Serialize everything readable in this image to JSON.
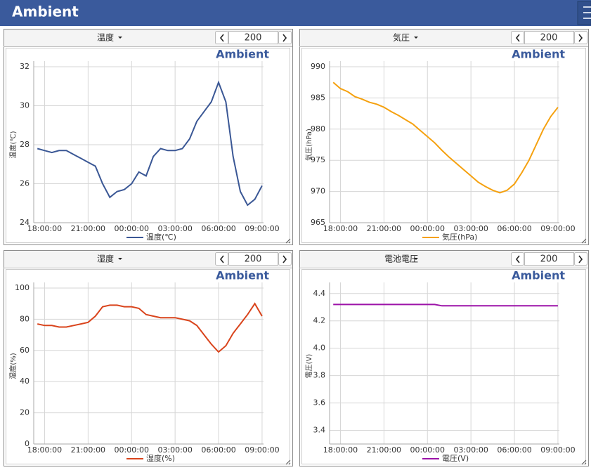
{
  "header": {
    "title": "Ambient"
  },
  "chart_data": [
    {
      "type": "line",
      "panel_title": "温度",
      "page_size": 200,
      "brand": "Ambient",
      "ylabel": "温度(℃)",
      "grid": true,
      "x": [
        17.5,
        18,
        18.5,
        19,
        19.5,
        20,
        20.5,
        21,
        21.5,
        22,
        22.5,
        23,
        23.5,
        24,
        24.5,
        25,
        25.5,
        26,
        26.5,
        27,
        27.5,
        28,
        28.5,
        29,
        29.5,
        30,
        30.5,
        31,
        31.5,
        32,
        32.5,
        33
      ],
      "xlim": [
        17.25,
        33.1
      ],
      "xticks": [
        {
          "value": 18,
          "label": "18:00:00"
        },
        {
          "value": 21,
          "label": "21:00:00"
        },
        {
          "value": 24,
          "label": "00:00:00"
        },
        {
          "value": 27,
          "label": "03:00:00"
        },
        {
          "value": 30,
          "label": "06:00:00"
        },
        {
          "value": 33,
          "label": "09:00:00"
        }
      ],
      "ylim": [
        24,
        32
      ],
      "yticks": [
        24,
        26,
        28,
        30,
        32
      ],
      "series": [
        {
          "name": "温度(℃)",
          "color": "#3a5795",
          "values": [
            27.8,
            27.7,
            27.6,
            27.7,
            27.7,
            27.5,
            27.3,
            27.1,
            26.9,
            26.0,
            25.3,
            25.6,
            25.7,
            26.0,
            26.6,
            26.4,
            27.4,
            27.8,
            27.7,
            27.7,
            27.8,
            28.3,
            29.2,
            29.7,
            30.2,
            31.2,
            30.2,
            27.4,
            25.6,
            24.9,
            25.2,
            25.9
          ]
        }
      ]
    },
    {
      "type": "line",
      "panel_title": "気圧",
      "page_size": 200,
      "brand": "Ambient",
      "ylabel": "気圧(hPa)",
      "grid": true,
      "x": [
        17.5,
        18,
        18.5,
        19,
        19.5,
        20,
        20.5,
        21,
        21.5,
        22,
        22.5,
        23,
        23.5,
        24,
        24.5,
        25,
        25.5,
        26,
        26.5,
        27,
        27.5,
        28,
        28.5,
        29,
        29.5,
        30,
        30.5,
        31,
        31.5,
        32,
        32.5,
        33
      ],
      "xlim": [
        17.25,
        33.1
      ],
      "xticks": [
        {
          "value": 18,
          "label": "18:00:00"
        },
        {
          "value": 21,
          "label": "21:00:00"
        },
        {
          "value": 24,
          "label": "00:00:00"
        },
        {
          "value": 27,
          "label": "03:00:00"
        },
        {
          "value": 30,
          "label": "06:00:00"
        },
        {
          "value": 33,
          "label": "09:00:00"
        }
      ],
      "ylim": [
        965,
        990
      ],
      "yticks": [
        965,
        970,
        975,
        980,
        985,
        990
      ],
      "series": [
        {
          "name": "気圧(hPa)",
          "color": "#f5a10f",
          "values": [
            987.5,
            986.5,
            986,
            985.2,
            984.8,
            984.3,
            984,
            983.5,
            982.8,
            982.2,
            981.5,
            980.8,
            979.8,
            978.8,
            977.8,
            976.6,
            975.5,
            974.5,
            973.5,
            972.5,
            971.5,
            970.8,
            970.2,
            969.8,
            970.2,
            971.2,
            973,
            975,
            977.5,
            980,
            982,
            983.5
          ]
        }
      ]
    },
    {
      "type": "line",
      "panel_title": "湿度",
      "page_size": 200,
      "brand": "Ambient",
      "ylabel": "湿度(%)",
      "grid": true,
      "x": [
        17.5,
        18,
        18.5,
        19,
        19.5,
        20,
        20.5,
        21,
        21.5,
        22,
        22.5,
        23,
        23.5,
        24,
        24.5,
        25,
        25.5,
        26,
        26.5,
        27,
        27.5,
        28,
        28.5,
        29,
        29.5,
        30,
        30.5,
        31,
        31.5,
        32,
        32.5,
        33
      ],
      "xlim": [
        17.25,
        33.1
      ],
      "xticks": [
        {
          "value": 18,
          "label": "18:00:00"
        },
        {
          "value": 21,
          "label": "21:00:00"
        },
        {
          "value": 24,
          "label": "00:00:00"
        },
        {
          "value": 27,
          "label": "03:00:00"
        },
        {
          "value": 30,
          "label": "06:00:00"
        },
        {
          "value": 33,
          "label": "09:00:00"
        }
      ],
      "ylim": [
        0,
        100
      ],
      "yticks": [
        0,
        20,
        40,
        60,
        80,
        100
      ],
      "series": [
        {
          "name": "湿度(%)",
          "color": "#d9441c",
          "values": [
            77,
            76,
            76,
            75,
            75,
            76,
            77,
            78,
            82,
            88,
            89,
            89,
            88,
            88,
            87,
            83,
            82,
            81,
            81,
            81,
            80,
            79,
            76,
            70,
            64,
            59,
            63,
            71,
            77,
            83,
            90,
            82
          ]
        }
      ]
    },
    {
      "type": "line",
      "panel_title": "電池電圧",
      "page_size": 200,
      "brand": "Ambient",
      "ylabel": "電圧(V)",
      "grid": true,
      "x": [
        17.5,
        18,
        18.5,
        19,
        19.5,
        20,
        20.5,
        21,
        21.5,
        22,
        22.5,
        23,
        23.5,
        24,
        24.5,
        25,
        25.5,
        26,
        26.5,
        27,
        27.5,
        28,
        28.5,
        29,
        29.5,
        30,
        30.5,
        31,
        31.5,
        32,
        32.5,
        33
      ],
      "xlim": [
        17.25,
        33.1
      ],
      "xticks": [
        {
          "value": 18,
          "label": "18:00:00"
        },
        {
          "value": 21,
          "label": "21:00:00"
        },
        {
          "value": 24,
          "label": "00:00:00"
        },
        {
          "value": 27,
          "label": "03:00:00"
        },
        {
          "value": 30,
          "label": "06:00:00"
        },
        {
          "value": 33,
          "label": "09:00:00"
        }
      ],
      "ylim": [
        3.3,
        4.44
      ],
      "yticks": [
        3.4,
        3.6,
        3.8,
        {
          "value": 4,
          "label": "4.0"
        },
        4.2,
        4.4
      ],
      "series": [
        {
          "name": "電圧(V)",
          "color": "#9c12a8",
          "values": [
            4.32,
            4.32,
            4.32,
            4.32,
            4.32,
            4.32,
            4.32,
            4.32,
            4.32,
            4.32,
            4.32,
            4.32,
            4.32,
            4.32,
            4.32,
            4.31,
            4.31,
            4.31,
            4.31,
            4.31,
            4.31,
            4.31,
            4.31,
            4.31,
            4.31,
            4.31,
            4.31,
            4.31,
            4.31,
            4.31,
            4.31,
            4.31
          ]
        }
      ]
    }
  ]
}
